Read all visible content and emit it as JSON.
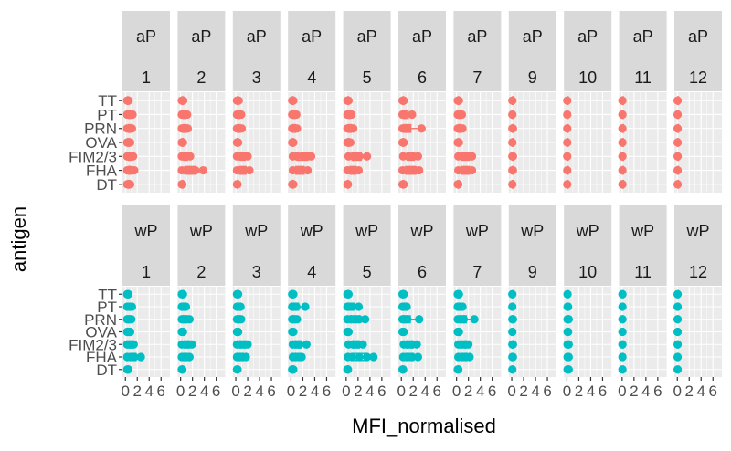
{
  "chart_data": {
    "type": "boxplot",
    "xlabel": "MFI_normalised",
    "ylabel": "antigen",
    "x_ticks": [
      0,
      2,
      4,
      6
    ],
    "x_tick_labels": [
      "0",
      "2",
      "4",
      "6"
    ],
    "xlim": [
      -0.5,
      7.5
    ],
    "antigens": [
      "TT",
      "PT",
      "PRN",
      "OVA",
      "FIM2/3",
      "FHA",
      "DT"
    ],
    "facet_rows": [
      "aP",
      "wP"
    ],
    "facet_cols": [
      "1",
      "2",
      "3",
      "4",
      "5",
      "6",
      "7",
      "9",
      "10",
      "11",
      "12"
    ],
    "colors": {
      "aP": "#F8766D",
      "wP": "#00BFC4"
    },
    "series": {
      "aP": {
        "1": {
          "TT": [
            0.3,
            0.55
          ],
          "PT": [
            0.3,
            0.6,
            0.9,
            1.2
          ],
          "PRN": [
            0.3,
            0.6,
            0.9,
            1.1
          ],
          "OVA": [
            0.3,
            0.5,
            0.8
          ],
          "FIM2/3": [
            0.3,
            0.6,
            0.9,
            1.3
          ],
          "FHA": [
            0.3,
            0.6,
            1.0,
            1.5
          ],
          "DT": [
            0.3,
            0.55,
            0.8
          ]
        },
        "2": {
          "TT": [
            0.2,
            0.45
          ],
          "PT": [
            0.2,
            0.5,
            0.8,
            1.1
          ],
          "PRN": [
            0.2,
            0.5,
            0.9,
            1.2
          ],
          "OVA": [
            0.2,
            0.4
          ],
          "FIM2/3": [
            0.2,
            0.6,
            1.0,
            1.6
          ],
          "FHA": [
            0.2,
            0.8,
            1.5,
            2.5,
            3.8
          ],
          "DT": [
            0.2,
            0.3
          ]
        },
        "3": {
          "TT": [
            0.2,
            0.5
          ],
          "PT": [
            0.2,
            0.5,
            0.9
          ],
          "PRN": [
            0.2,
            0.5,
            1.0
          ],
          "OVA": [
            0.2,
            0.4
          ],
          "FIM2/3": [
            0.2,
            0.8,
            1.4,
            2.0
          ],
          "FHA": [
            0.2,
            0.8,
            1.5,
            2.3
          ],
          "DT": [
            0.2,
            0.3
          ]
        },
        "4": {
          "TT": [
            0.2,
            0.4
          ],
          "PT": [
            0.2,
            0.5,
            0.9
          ],
          "PRN": [
            0.2,
            0.5,
            1.0
          ],
          "OVA": [
            0.2,
            0.4
          ],
          "FIM2/3": [
            0.3,
            1.0,
            2.0,
            2.8,
            3.4
          ],
          "FHA": [
            0.3,
            1.0,
            2.0,
            2.8
          ],
          "DT": [
            0.2,
            0.4
          ]
        },
        "5": {
          "TT": [
            0.2,
            0.4
          ],
          "PT": [
            0.2,
            0.5,
            0.9
          ],
          "PRN": [
            0.2,
            0.6,
            1.2
          ],
          "OVA": [
            0.2,
            0.4,
            0.7
          ],
          "FIM2/3": [
            0.4,
            1.2,
            2.2,
            3.5
          ],
          "FHA": [
            0.2,
            0.8,
            1.5,
            2.1
          ],
          "DT": [
            0.2,
            0.3
          ]
        },
        "6": {
          "TT": [
            0.2,
            0.4
          ],
          "PT": [
            0.2,
            0.5,
            1.8
          ],
          "PRN": [
            0.2,
            0.5,
            1.0,
            3.4
          ],
          "OVA": [
            0.2,
            0.4
          ],
          "FIM2/3": [
            0.3,
            1.2,
            2.0,
            2.8
          ],
          "FHA": [
            0.2,
            0.8,
            1.6,
            2.4,
            3.0
          ],
          "DT": [
            0.2,
            0.4
          ]
        },
        "7": {
          "TT": [
            0.2,
            0.4
          ],
          "PT": [
            0.2,
            0.5,
            0.9
          ],
          "PRN": [
            0.2,
            0.5,
            1.0
          ],
          "OVA": [
            0.2,
            0.4
          ],
          "FIM2/3": [
            0.3,
            1.0,
            2.0,
            2.6
          ],
          "FHA": [
            0.3,
            1.0,
            2.0,
            2.6
          ],
          "DT": [
            0.2,
            0.3
          ]
        },
        "9": {
          "TT": [
            0.1
          ],
          "PT": [
            0.1
          ],
          "PRN": [
            0.1,
            0.2
          ],
          "OVA": [
            0.1
          ],
          "FIM2/3": [
            0.1,
            0.2
          ],
          "FHA": [
            0.1,
            0.2
          ],
          "DT": [
            0.1
          ]
        },
        "10": {
          "TT": [
            0.05
          ],
          "PT": [
            0.05
          ],
          "PRN": [
            0.05
          ],
          "OVA": [
            0.05
          ],
          "FIM2/3": [
            0.05
          ],
          "FHA": [
            0.05
          ],
          "DT": [
            0.05
          ]
        },
        "11": {
          "TT": [
            0.05
          ],
          "PT": [
            0.05
          ],
          "PRN": [
            0.05
          ],
          "OVA": [
            0.05
          ],
          "FIM2/3": [
            0.05
          ],
          "FHA": [
            0.05
          ],
          "DT": [
            0.05
          ]
        },
        "12": {
          "TT": [
            0.05
          ],
          "PT": [
            0.05
          ],
          "PRN": [
            0.05
          ],
          "OVA": [
            0.05
          ],
          "FIM2/3": [
            0.05
          ],
          "FHA": [
            0.05
          ],
          "DT": [
            0.05
          ]
        }
      },
      "wP": {
        "1": {
          "TT": [
            0.3,
            0.5
          ],
          "PT": [
            0.3,
            0.7,
            1.1
          ],
          "PRN": [
            0.3,
            0.6,
            1.0
          ],
          "OVA": [
            0.3,
            0.5,
            0.8
          ],
          "FIM2/3": [
            0.3,
            0.7,
            1.1,
            1.4
          ],
          "FHA": [
            0.3,
            0.9,
            1.5,
            2.6
          ],
          "DT": [
            0.3,
            0.5
          ]
        },
        "2": {
          "TT": [
            0.2,
            0.4
          ],
          "PT": [
            0.2,
            0.5,
            0.9
          ],
          "PRN": [
            0.2,
            0.5,
            1.0,
            1.5
          ],
          "OVA": [
            0.2,
            0.4
          ],
          "FIM2/3": [
            0.2,
            0.8,
            1.3,
            1.9
          ],
          "FHA": [
            0.2,
            0.6,
            1.0,
            1.5
          ],
          "DT": [
            0.2,
            0.3
          ]
        },
        "3": {
          "TT": [
            0.2,
            0.4
          ],
          "PT": [
            0.2,
            0.5,
            0.8
          ],
          "PRN": [
            0.2,
            0.5,
            0.9
          ],
          "OVA": [
            0.2,
            0.4
          ],
          "FIM2/3": [
            0.2,
            0.8,
            1.5,
            2.0
          ],
          "FHA": [
            0.2,
            0.6,
            1.1,
            1.7
          ],
          "DT": [
            0.2,
            0.3
          ]
        },
        "4": {
          "TT": [
            0.2,
            0.4
          ],
          "PT": [
            0.2,
            0.5,
            0.9,
            2.4
          ],
          "PRN": [
            0.2,
            0.5,
            1.0
          ],
          "OVA": [
            0.2,
            0.4
          ],
          "FIM2/3": [
            0.3,
            0.8,
            1.4,
            2.6
          ],
          "FHA": [
            0.3,
            0.8,
            1.4,
            1.8
          ],
          "DT": [
            0.2,
            0.4
          ]
        },
        "5": {
          "TT": [
            0.2,
            0.4
          ],
          "PT": [
            0.2,
            0.5,
            1.0,
            2.1
          ],
          "PRN": [
            0.2,
            0.8,
            1.5,
            2.2,
            3.2
          ],
          "OVA": [
            0.2,
            0.4
          ],
          "FIM2/3": [
            0.4,
            1.2,
            2.0,
            2.8
          ],
          "FHA": [
            0.3,
            1.0,
            2.2,
            3.5,
            4.6
          ],
          "DT": [
            0.2,
            0.3
          ]
        },
        "6": {
          "TT": [
            0.2,
            0.4
          ],
          "PT": [
            0.2,
            0.5,
            0.9
          ],
          "PRN": [
            0.2,
            0.5,
            1.0,
            3.0
          ],
          "OVA": [
            0.2,
            0.4
          ],
          "FIM2/3": [
            0.4,
            1.0,
            1.8,
            2.6
          ],
          "FHA": [
            0.3,
            0.9,
            1.8,
            2.8
          ],
          "DT": [
            0.2,
            0.3
          ]
        },
        "7": {
          "TT": [
            0.2,
            0.4
          ],
          "PT": [
            0.2,
            0.5,
            1.0
          ],
          "PRN": [
            0.2,
            0.6,
            1.2,
            3.0
          ],
          "OVA": [
            0.2,
            0.4
          ],
          "FIM2/3": [
            0.3,
            0.8,
            1.5,
            2.0
          ],
          "FHA": [
            0.3,
            0.9,
            1.6,
            2.2
          ],
          "DT": [
            0.2,
            0.3
          ]
        },
        "9": {
          "TT": [
            0.1
          ],
          "PT": [
            0.1
          ],
          "PRN": [
            0.1,
            0.2
          ],
          "OVA": [
            0.1
          ],
          "FIM2/3": [
            0.1,
            0.2
          ],
          "FHA": [
            0.1,
            0.2
          ],
          "DT": [
            0.1
          ]
        },
        "10": {
          "TT": [
            0.1
          ],
          "PT": [
            0.1,
            0.2
          ],
          "PRN": [
            0.1,
            0.3
          ],
          "OVA": [
            0.1,
            0.2
          ],
          "FIM2/3": [
            0.1,
            0.3
          ],
          "FHA": [
            0.1,
            0.3
          ],
          "DT": [
            0.1,
            0.3
          ]
        },
        "11": {
          "TT": [
            0.05
          ],
          "PT": [
            0.05
          ],
          "PRN": [
            0.05
          ],
          "OVA": [
            0.05
          ],
          "FIM2/3": [
            0.05
          ],
          "FHA": [
            0.05
          ],
          "DT": [
            0.05
          ]
        },
        "12": {
          "TT": [
            0.05
          ],
          "PT": [
            0.05
          ],
          "PRN": [
            0.05
          ],
          "OVA": [
            0.05
          ],
          "FIM2/3": [
            0.05
          ],
          "FHA": [
            0.05
          ],
          "DT": [
            0.05
          ]
        }
      }
    }
  }
}
